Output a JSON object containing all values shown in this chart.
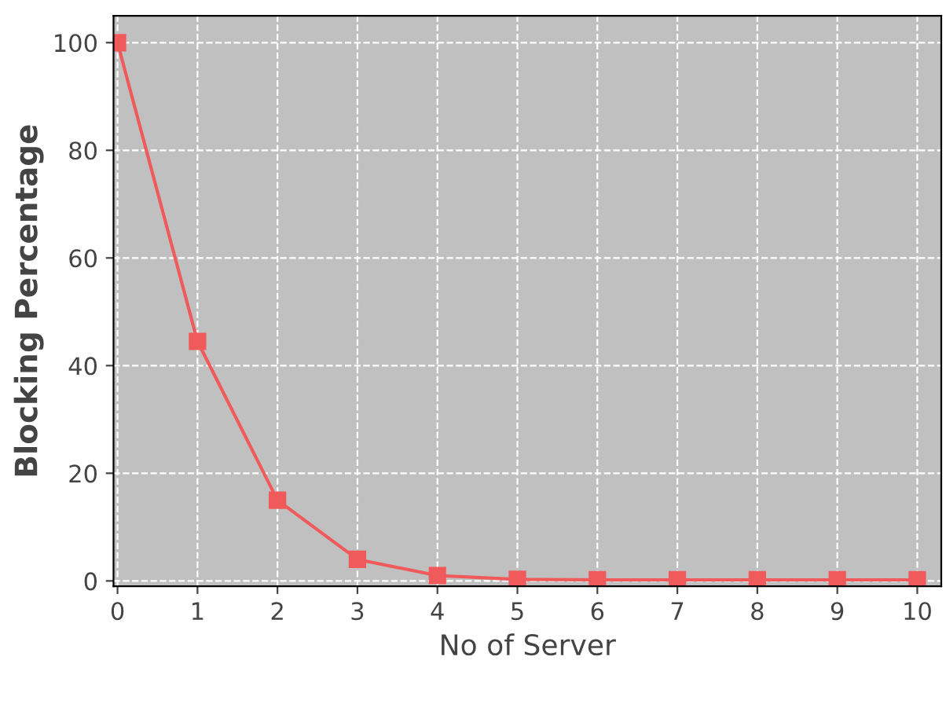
{
  "chart_data": {
    "type": "line",
    "xlabel": "No of Server",
    "ylabel": "Blocking Percentage",
    "x": [
      0,
      1,
      2,
      3,
      4,
      5,
      6,
      7,
      8,
      9,
      10
    ],
    "series": [
      {
        "color": "#f05a5a",
        "values": [
          100,
          44.5,
          15,
          4,
          1,
          0.3,
          0.2,
          0.2,
          0.2,
          0.2,
          0.2
        ]
      }
    ],
    "xlim": [
      -0.05,
      10.3
    ],
    "ylim": [
      -1,
      105
    ],
    "xticks": [
      0,
      1,
      2,
      3,
      4,
      5,
      6,
      7,
      8,
      9,
      10
    ],
    "yticks": [
      0,
      20,
      40,
      60,
      80,
      100
    ],
    "grid": true,
    "marker": "square",
    "line_style": "solid"
  }
}
